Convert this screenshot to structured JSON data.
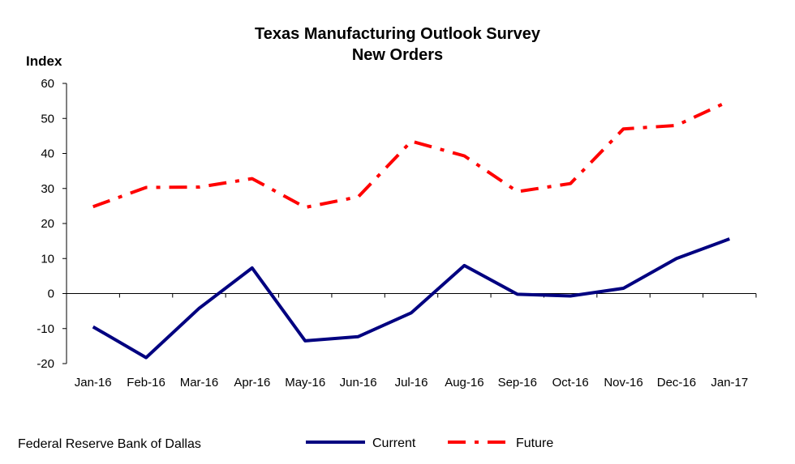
{
  "chart_data": {
    "type": "line",
    "title": "Texas Manufacturing Outlook Survey",
    "subtitle": "New Orders",
    "ylabel": "Index",
    "xlabel": "",
    "ylim": [
      -20,
      60
    ],
    "yticks": [
      60,
      50,
      40,
      30,
      20,
      10,
      0,
      -10,
      -20
    ],
    "grid": false,
    "legend": "bottom",
    "categories": [
      "Jan-16",
      "Feb-16",
      "Mar-16",
      "Apr-16",
      "May-16",
      "Jun-16",
      "Jul-16",
      "Aug-16",
      "Sep-16",
      "Oct-16",
      "Nov-16",
      "Dec-16",
      "Jan-17"
    ],
    "series": [
      {
        "name": "Current",
        "color": "#000080",
        "style": "solid",
        "values": [
          -9.5,
          -18.3,
          -4.2,
          7.3,
          -13.5,
          -12.3,
          -5.5,
          8.0,
          -0.2,
          -0.7,
          1.5,
          10.0,
          15.6
        ]
      },
      {
        "name": "Future",
        "color": "#ff0000",
        "style": "dash-dot",
        "values": [
          24.8,
          30.3,
          30.4,
          32.8,
          24.6,
          27.6,
          43.5,
          39.3,
          29.1,
          31.4,
          47.0,
          48.0,
          55.0
        ]
      }
    ]
  },
  "footer": {
    "source": "Federal Reserve Bank of Dallas"
  }
}
